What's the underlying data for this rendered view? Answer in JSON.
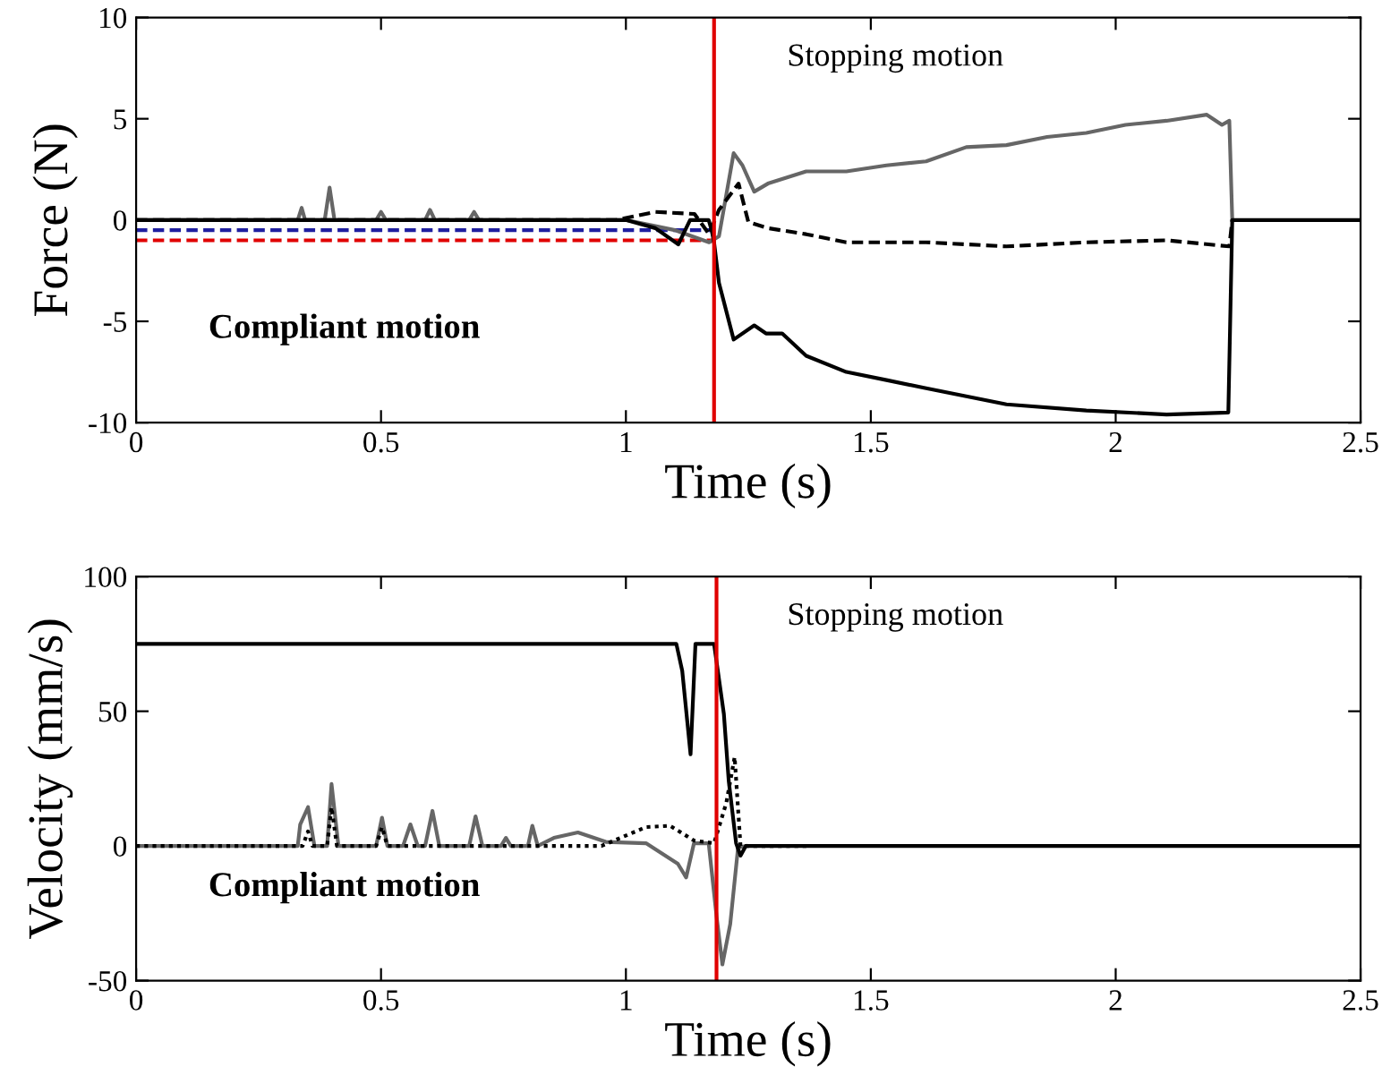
{
  "chart_data": [
    {
      "type": "line",
      "xlabel": "Time (s)",
      "ylabel": "Force (N)",
      "xlim": [
        0,
        2.5
      ],
      "ylim": [
        -10,
        10
      ],
      "xticks": [
        0,
        0.5,
        1,
        1.5,
        2,
        2.5
      ],
      "yticks": [
        -10,
        -5,
        0,
        5,
        10
      ],
      "grid": false,
      "legend": false,
      "annotations": [
        "Stopping motion",
        "Compliant motion"
      ],
      "ref_lines": [
        {
          "axis": "x",
          "value": 1.18,
          "color": "#e00000",
          "line_style": "solid"
        }
      ],
      "series": [
        {
          "color": "#1f1fa0",
          "line_style": "dashed",
          "x": [
            0,
            1.18
          ],
          "values": [
            -0.5,
            -0.5
          ]
        },
        {
          "color": "#e00000",
          "line_style": "dashed",
          "x": [
            0,
            1.18
          ],
          "values": [
            -1,
            -1
          ]
        },
        {
          "color": "#666666",
          "line_style": "solid",
          "x": [
            0,
            0.33,
            0.338,
            0.345,
            0.385,
            0.395,
            0.405,
            0.49,
            0.5,
            0.51,
            0.59,
            0.6,
            0.61,
            0.68,
            0.69,
            0.7,
            1.0,
            1.1,
            1.17,
            1.19,
            1.22,
            1.238,
            1.262,
            1.29,
            1.368,
            1.45,
            1.532,
            1.613,
            1.695,
            1.777,
            1.86,
            1.94,
            2.02,
            2.104,
            2.186,
            2.217,
            2.232,
            2.238
          ],
          "values": [
            0,
            0,
            0.6,
            0,
            0,
            1.6,
            0,
            0,
            0.4,
            0,
            0,
            0.5,
            0,
            0,
            0.4,
            0,
            0,
            -0.5,
            -1.1,
            -0.8,
            3.3,
            2.7,
            1.4,
            1.8,
            2.4,
            2.4,
            2.7,
            2.9,
            3.6,
            3.7,
            4.1,
            4.3,
            4.7,
            4.9,
            5.2,
            4.7,
            4.9,
            0
          ]
        },
        {
          "color": "#000000",
          "line_style": "dashed",
          "x": [
            0,
            0.98,
            1.06,
            1.14,
            1.17,
            1.19,
            1.23,
            1.25,
            1.29,
            1.368,
            1.45,
            1.613,
            1.777,
            1.94,
            2.104,
            2.232,
            2.238
          ],
          "values": [
            0,
            0,
            0.4,
            0.3,
            -0.7,
            0.5,
            1.8,
            -0.1,
            -0.4,
            -0.7,
            -1.1,
            -1.1,
            -1.3,
            -1.1,
            -1.0,
            -1.3,
            0
          ]
        },
        {
          "color": "#000000",
          "line_style": "solid",
          "x": [
            0,
            1.0,
            1.06,
            1.107,
            1.131,
            1.169,
            1.175,
            1.18,
            1.19,
            1.22,
            1.262,
            1.286,
            1.319,
            1.368,
            1.45,
            1.532,
            1.613,
            1.695,
            1.777,
            1.94,
            2.104,
            2.23,
            2.238,
            2.5
          ],
          "values": [
            0,
            0,
            -0.4,
            -1.2,
            0,
            0,
            -0.5,
            -1.1,
            -3.1,
            -5.9,
            -5.2,
            -5.6,
            -5.6,
            -6.7,
            -7.5,
            -7.9,
            -8.3,
            -8.7,
            -9.1,
            -9.4,
            -9.6,
            -9.5,
            0,
            0
          ]
        }
      ]
    },
    {
      "type": "line",
      "xlabel": "Time (s)",
      "ylabel": "Velocity (mm/s)",
      "xlim": [
        0,
        2.5
      ],
      "ylim": [
        -50,
        100
      ],
      "xticks": [
        0,
        0.5,
        1,
        1.5,
        2,
        2.5
      ],
      "yticks": [
        -50,
        0,
        50,
        100
      ],
      "grid": false,
      "legend": false,
      "annotations": [
        "Stopping motion",
        "Compliant motion"
      ],
      "ref_lines": [
        {
          "axis": "x",
          "value": 1.185,
          "color": "#e00000",
          "line_style": "solid"
        }
      ],
      "series": [
        {
          "color": "#666666",
          "line_style": "solid",
          "x": [
            0,
            0.33,
            0.335,
            0.351,
            0.364,
            0.39,
            0.399,
            0.413,
            0.49,
            0.502,
            0.513,
            0.545,
            0.56,
            0.575,
            0.59,
            0.605,
            0.619,
            0.68,
            0.693,
            0.707,
            0.745,
            0.755,
            0.765,
            0.8,
            0.809,
            0.82,
            0.853,
            0.902,
            0.959,
            1.041,
            1.106,
            1.123,
            1.139,
            1.169,
            1.185,
            1.197,
            1.213,
            1.229,
            1.245
          ],
          "values": [
            0,
            0,
            8,
            14.4,
            0,
            0,
            23,
            0,
            0,
            10.5,
            0,
            0,
            8,
            0,
            0,
            13,
            0,
            0,
            11,
            0,
            0,
            3,
            0,
            0,
            7.5,
            0,
            3,
            5,
            1.5,
            1,
            -6.6,
            -11.7,
            1,
            1,
            -26,
            -44,
            -29,
            -0.6,
            0
          ]
        },
        {
          "color": "#000000",
          "line_style": "dotted",
          "x": [
            0,
            0.34,
            0.351,
            0.36,
            0.39,
            0.399,
            0.41,
            0.49,
            0.502,
            0.513,
            0.95,
            1.041,
            1.09,
            1.139,
            1.18,
            1.205,
            1.222,
            1.234,
            1.376
          ],
          "values": [
            0,
            0,
            5.4,
            0,
            0,
            14.4,
            0,
            0,
            7,
            0,
            0,
            7,
            7.5,
            2,
            1,
            16,
            33,
            0,
            0
          ]
        },
        {
          "color": "#000000",
          "line_style": "solid",
          "x": [
            0,
            1.103,
            1.115,
            1.132,
            1.142,
            1.18,
            1.2,
            1.21,
            1.225,
            1.234,
            1.245,
            2.5
          ],
          "values": [
            75,
            75,
            65,
            34,
            75,
            75,
            49,
            24,
            1,
            -3.6,
            0,
            0
          ]
        }
      ]
    }
  ]
}
